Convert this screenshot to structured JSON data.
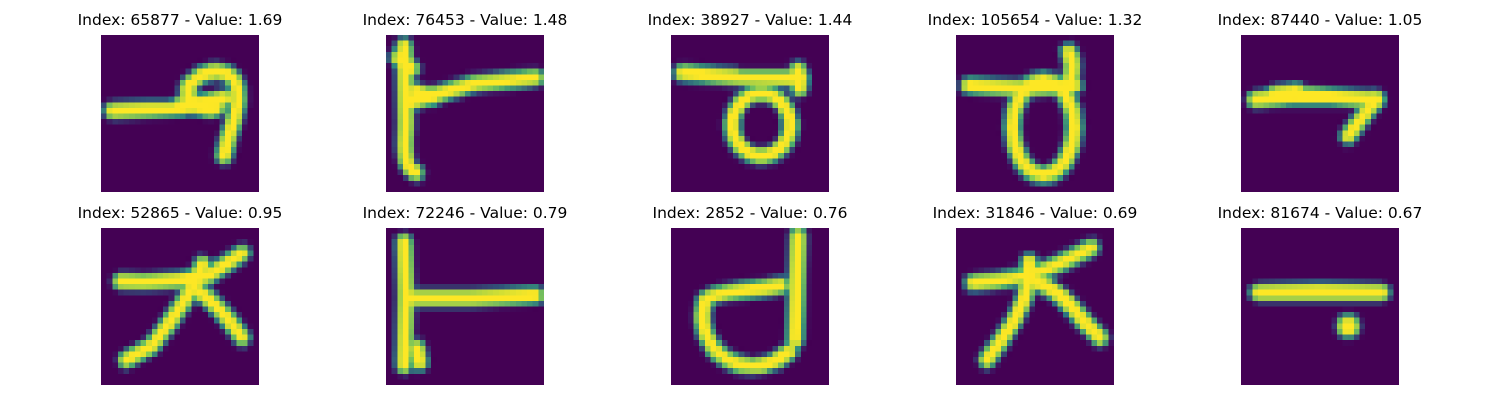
{
  "colors": {
    "background": "#440154",
    "stroke_core": "#fde725",
    "stroke_mid": "#5ec962",
    "stroke_edge": "#21918c",
    "stroke_outer": "#3b528b"
  },
  "panels": [
    {
      "title": "Index: 65877 - Value: 1.69"
    },
    {
      "title": "Index: 76453 - Value: 1.48"
    },
    {
      "title": "Index: 38927 - Value: 1.44"
    },
    {
      "title": "Index: 105654 - Value: 1.32"
    },
    {
      "title": "Index: 87440 - Value: 1.05"
    },
    {
      "title": "Index: 52865 - Value: 0.95"
    },
    {
      "title": "Index: 72246 - Value: 0.79"
    },
    {
      "title": "Index: 2852 - Value: 0.76"
    },
    {
      "title": "Index: 31846 - Value: 0.69"
    },
    {
      "title": "Index: 81674 - Value: 0.67"
    }
  ]
}
